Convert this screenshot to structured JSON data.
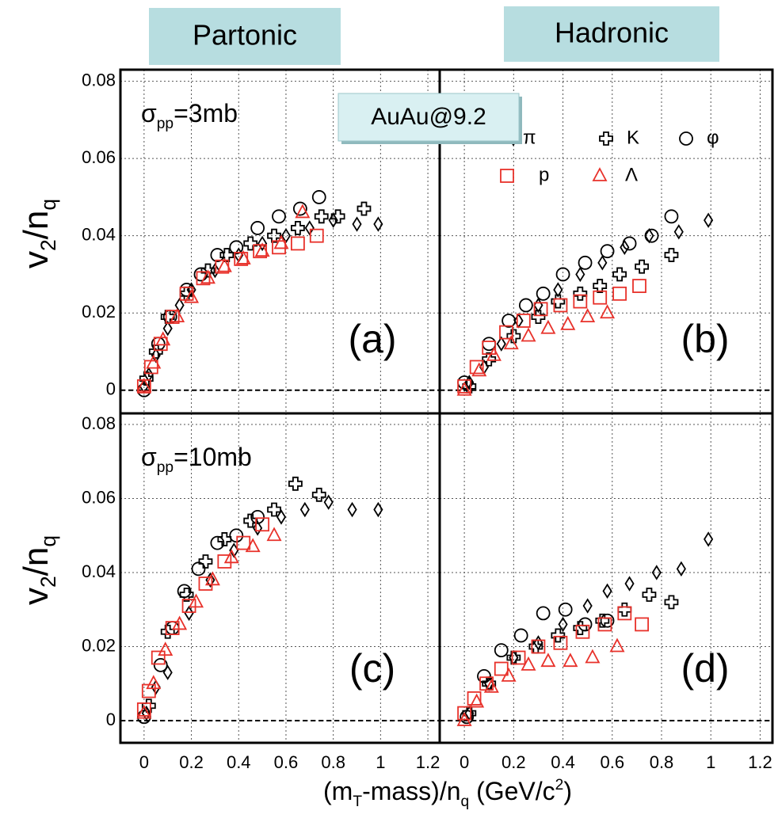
{
  "header": {
    "left": "Partonic",
    "right": "Hadronic",
    "box": "AuAu@9.2"
  },
  "xlabel_parts": [
    "(m",
    "T",
    "-mass)/n",
    "q",
    " (GeV/c",
    "2",
    ")"
  ],
  "chart_data": [
    {
      "type": "scatter",
      "label": "(a)",
      "sigma_parts": [
        "σ",
        "pp",
        "=3mb"
      ],
      "ylabel_parts": [
        "v",
        "2",
        "/n",
        "q"
      ],
      "xlim": [
        -0.1,
        1.25
      ],
      "ylim": [
        -0.006,
        0.083
      ],
      "yticks": [
        0,
        0.02,
        0.04,
        0.06,
        0.08
      ],
      "grid": true,
      "series": [
        {
          "marker": "diamond",
          "color": "#000000",
          "x": [
            0,
            0.02,
            0.05,
            0.1,
            0.15,
            0.2,
            0.3,
            0.4,
            0.5,
            0.6,
            0.7,
            0.8,
            0.9,
            0.99
          ],
          "values": [
            0.001,
            0.004,
            0.009,
            0.016,
            0.022,
            0.026,
            0.031,
            0.035,
            0.038,
            0.04,
            0.042,
            0.044,
            0.043,
            0.043
          ]
        },
        {
          "marker": "cross",
          "color": "#000000",
          "x": [
            0.01,
            0.05,
            0.1,
            0.18,
            0.27,
            0.35,
            0.45,
            0.55,
            0.65,
            0.75,
            0.82,
            0.93
          ],
          "values": [
            0.003,
            0.01,
            0.019,
            0.025,
            0.031,
            0.035,
            0.038,
            0.04,
            0.042,
            0.045,
            0.045,
            0.047
          ]
        },
        {
          "marker": "circle",
          "color": "#000000",
          "x": [
            0,
            0.06,
            0.11,
            0.18,
            0.24,
            0.31,
            0.39,
            0.48,
            0.57,
            0.66,
            0.74
          ],
          "values": [
            0,
            0.012,
            0.019,
            0.026,
            0.03,
            0.035,
            0.037,
            0.042,
            0.045,
            0.047,
            0.05
          ]
        },
        {
          "marker": "square",
          "color": "#e8312a",
          "x": [
            0,
            0.03,
            0.07,
            0.12,
            0.18,
            0.25,
            0.33,
            0.41,
            0.49,
            0.57,
            0.65,
            0.73
          ],
          "values": [
            0.001,
            0.006,
            0.012,
            0.019,
            0.025,
            0.029,
            0.032,
            0.034,
            0.036,
            0.037,
            0.038,
            0.04
          ]
        },
        {
          "marker": "triangle",
          "color": "#e8312a",
          "x": [
            0,
            0.04,
            0.08,
            0.14,
            0.2,
            0.27,
            0.34,
            0.42,
            0.5,
            0.58,
            0.67
          ],
          "values": [
            0.001,
            0.007,
            0.013,
            0.019,
            0.024,
            0.029,
            0.032,
            0.034,
            0.036,
            0.038,
            0.046
          ]
        }
      ]
    },
    {
      "type": "scatter",
      "label": "(b)",
      "xlim": [
        -0.1,
        1.25
      ],
      "ylim": [
        -0.006,
        0.083
      ],
      "grid": true,
      "series": [
        {
          "name": "π",
          "marker": "diamond",
          "color": "#000000",
          "x": [
            0.02,
            0.08,
            0.15,
            0.22,
            0.3,
            0.38,
            0.47,
            0.56,
            0.65,
            0.75,
            0.87,
            0.99
          ],
          "values": [
            0.002,
            0.006,
            0.012,
            0.018,
            0.022,
            0.026,
            0.03,
            0.033,
            0.037,
            0.04,
            0.041,
            0.044
          ]
        },
        {
          "name": "K",
          "marker": "cross",
          "color": "#000000",
          "x": [
            0.02,
            0.1,
            0.2,
            0.3,
            0.38,
            0.47,
            0.55,
            0.63,
            0.72,
            0.84
          ],
          "values": [
            0.001,
            0.008,
            0.014,
            0.019,
            0.023,
            0.025,
            0.027,
            0.03,
            0.032,
            0.035
          ]
        },
        {
          "name": "φ",
          "marker": "circle",
          "color": "#000000",
          "x": [
            0,
            0.1,
            0.18,
            0.25,
            0.32,
            0.4,
            0.49,
            0.58,
            0.67,
            0.76,
            0.84
          ],
          "values": [
            0.002,
            0.012,
            0.018,
            0.022,
            0.025,
            0.03,
            0.033,
            0.036,
            0.038,
            0.04,
            0.045
          ]
        },
        {
          "name": "p",
          "marker": "square",
          "color": "#e8312a",
          "x": [
            0,
            0.05,
            0.1,
            0.17,
            0.24,
            0.31,
            0.39,
            0.47,
            0.55,
            0.63,
            0.71
          ],
          "values": [
            0.001,
            0.006,
            0.011,
            0.015,
            0.018,
            0.021,
            0.022,
            0.023,
            0.024,
            0.025,
            0.027
          ]
        },
        {
          "name": "Λ",
          "marker": "triangle",
          "color": "#e8312a",
          "x": [
            0,
            0.06,
            0.12,
            0.19,
            0.26,
            0.34,
            0.42,
            0.5,
            0.58
          ],
          "values": [
            0,
            0.005,
            0.009,
            0.012,
            0.014,
            0.016,
            0.017,
            0.019,
            0.02
          ]
        }
      ]
    },
    {
      "type": "scatter",
      "label": "(c)",
      "sigma_parts": [
        "σ",
        "pp",
        "=10mb"
      ],
      "ylabel_parts": [
        "v",
        "2",
        "/n",
        "q"
      ],
      "xlim": [
        -0.1,
        1.25
      ],
      "ylim": [
        -0.006,
        0.083
      ],
      "xticks": [
        0,
        0.2,
        0.4,
        0.6,
        0.8,
        1,
        1.2
      ],
      "yticks": [
        0,
        0.02,
        0.04,
        0.06,
        0.08
      ],
      "grid": true,
      "series": [
        {
          "marker": "diamond",
          "color": "#000000",
          "x": [
            0.01,
            0.05,
            0.1,
            0.19,
            0.28,
            0.38,
            0.48,
            0.58,
            0.68,
            0.78,
            0.88,
            0.99
          ],
          "values": [
            0.002,
            0.009,
            0.013,
            0.029,
            0.038,
            0.046,
            0.052,
            0.055,
            0.057,
            0.059,
            0.057,
            0.057
          ]
        },
        {
          "marker": "cross",
          "color": "#000000",
          "x": [
            0.02,
            0.1,
            0.18,
            0.26,
            0.34,
            0.45,
            0.55,
            0.64,
            0.74
          ],
          "values": [
            0.004,
            0.024,
            0.034,
            0.043,
            0.049,
            0.054,
            0.057,
            0.064,
            0.061
          ]
        },
        {
          "marker": "circle",
          "color": "#000000",
          "x": [
            0,
            0.07,
            0.12,
            0.17,
            0.23,
            0.31,
            0.39,
            0.48
          ],
          "values": [
            0.001,
            0.015,
            0.025,
            0.035,
            0.041,
            0.048,
            0.05,
            0.055
          ]
        },
        {
          "marker": "square",
          "color": "#e8312a",
          "x": [
            0,
            0.02,
            0.06,
            0.12,
            0.19,
            0.26,
            0.34,
            0.42,
            0.5
          ],
          "values": [
            0.003,
            0.008,
            0.017,
            0.025,
            0.031,
            0.037,
            0.043,
            0.048,
            0.053
          ]
        },
        {
          "marker": "triangle",
          "color": "#e8312a",
          "x": [
            0,
            0.04,
            0.09,
            0.15,
            0.22,
            0.29,
            0.37,
            0.46,
            0.55
          ],
          "values": [
            0.002,
            0.01,
            0.019,
            0.026,
            0.032,
            0.038,
            0.044,
            0.047,
            0.05
          ]
        }
      ]
    },
    {
      "type": "scatter",
      "label": "(d)",
      "xlim": [
        -0.1,
        1.25
      ],
      "ylim": [
        -0.006,
        0.083
      ],
      "xticks": [
        0,
        0.2,
        0.4,
        0.6,
        0.8,
        1,
        1.2
      ],
      "grid": true,
      "series": [
        {
          "marker": "diamond",
          "color": "#000000",
          "x": [
            0.02,
            0.1,
            0.2,
            0.3,
            0.4,
            0.5,
            0.58,
            0.67,
            0.78,
            0.88,
            0.99
          ],
          "values": [
            0.002,
            0.01,
            0.017,
            0.021,
            0.026,
            0.031,
            0.035,
            0.037,
            0.04,
            0.041,
            0.049
          ]
        },
        {
          "marker": "cross",
          "color": "#000000",
          "x": [
            0.02,
            0.1,
            0.2,
            0.29,
            0.38,
            0.47,
            0.56,
            0.65,
            0.75,
            0.84
          ],
          "values": [
            0.002,
            0.01,
            0.017,
            0.02,
            0.023,
            0.025,
            0.027,
            0.03,
            0.034,
            0.032
          ]
        },
        {
          "marker": "circle",
          "color": "#000000",
          "x": [
            0.01,
            0.08,
            0.15,
            0.23,
            0.32,
            0.41,
            0.49,
            0.58
          ],
          "values": [
            0.001,
            0.012,
            0.019,
            0.023,
            0.029,
            0.03,
            0.026,
            0.027
          ]
        },
        {
          "marker": "square",
          "color": "#e8312a",
          "x": [
            0,
            0.04,
            0.09,
            0.15,
            0.22,
            0.3,
            0.39,
            0.48,
            0.57,
            0.65,
            0.72
          ],
          "values": [
            0.002,
            0.006,
            0.01,
            0.014,
            0.017,
            0.02,
            0.021,
            0.024,
            0.026,
            0.029,
            0.026
          ]
        },
        {
          "marker": "triangle",
          "color": "#e8312a",
          "x": [
            0,
            0.05,
            0.11,
            0.18,
            0.26,
            0.34,
            0.43,
            0.52,
            0.62
          ],
          "values": [
            0,
            0.005,
            0.009,
            0.012,
            0.015,
            0.016,
            0.016,
            0.017,
            0.02
          ]
        }
      ]
    }
  ]
}
